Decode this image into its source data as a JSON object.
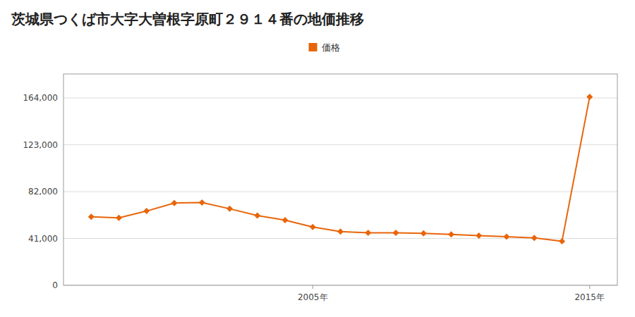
{
  "chart_data": {
    "type": "line",
    "title": "茨城県つくば市大字大曽根字原町２９１４番の地価推移",
    "x": [
      1997,
      1998,
      1999,
      2000,
      2001,
      2002,
      2003,
      2004,
      2005,
      2006,
      2007,
      2008,
      2009,
      2010,
      2011,
      2012,
      2013,
      2014,
      2015
    ],
    "series": [
      {
        "name": "価格",
        "color": "#e8650a",
        "marker": "diamond",
        "values": [
          60000,
          59000,
          65000,
          72000,
          72500,
          67000,
          61000,
          57000,
          51000,
          47000,
          46000,
          46000,
          45500,
          44500,
          43500,
          42500,
          41500,
          38500,
          165000
        ]
      }
    ],
    "xlim": [
      1996,
      2016
    ],
    "xticks": [
      {
        "value": 2005,
        "label": "2005年"
      },
      {
        "value": 2015,
        "label": "2015年"
      }
    ],
    "ylim": [
      0,
      185000
    ],
    "yticks": [
      0,
      {
        "value": 41000,
        "label": "41,000"
      },
      {
        "value": 82000,
        "label": "82,000"
      },
      {
        "value": 123000,
        "label": "123,000"
      },
      {
        "value": 164000,
        "label": "164,000"
      }
    ],
    "grid": true,
    "legend": "top"
  }
}
